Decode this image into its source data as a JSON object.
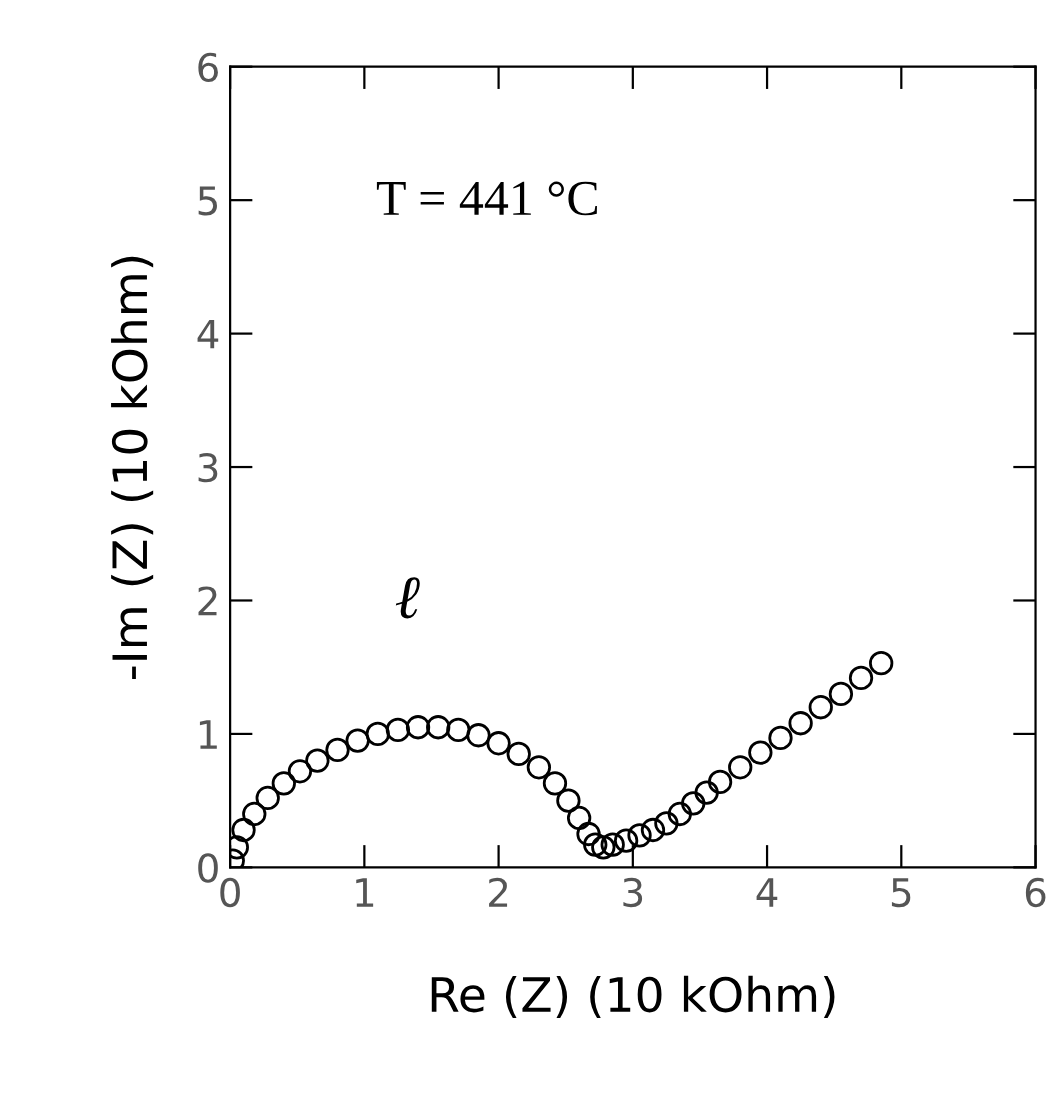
{
  "chart_data": {
    "type": "scatter",
    "xlabel": "Re (Z) (10 kOhm)",
    "ylabel": "-Im (Z) (10 kOhm)",
    "annotations": [
      "T = 441 °C",
      "ℓ"
    ],
    "x": [
      0.02,
      0.05,
      0.1,
      0.18,
      0.28,
      0.4,
      0.52,
      0.65,
      0.8,
      0.95,
      1.1,
      1.25,
      1.4,
      1.55,
      1.7,
      1.85,
      2.0,
      2.15,
      2.3,
      2.42,
      2.52,
      2.6,
      2.67,
      2.72,
      2.78,
      2.85,
      2.95,
      3.05,
      3.15,
      3.25,
      3.35,
      3.45,
      3.55,
      3.65,
      3.8,
      3.95,
      4.1,
      4.25,
      4.4,
      4.55,
      4.7,
      4.85
    ],
    "series": [
      {
        "color": "#000000",
        "values": [
          0.05,
          0.15,
          0.28,
          0.4,
          0.52,
          0.63,
          0.72,
          0.8,
          0.88,
          0.95,
          1.0,
          1.03,
          1.05,
          1.05,
          1.03,
          0.99,
          0.93,
          0.85,
          0.75,
          0.63,
          0.5,
          0.37,
          0.25,
          0.17,
          0.15,
          0.17,
          0.2,
          0.24,
          0.28,
          0.33,
          0.4,
          0.48,
          0.56,
          0.64,
          0.75,
          0.86,
          0.97,
          1.08,
          1.2,
          1.3,
          1.42,
          1.53
        ]
      }
    ],
    "marker": "circle",
    "xlim": [
      0,
      6
    ],
    "ylim": [
      0,
      6
    ],
    "xticks": [
      0,
      1,
      2,
      3,
      4,
      5,
      6
    ],
    "yticks": [
      0,
      1,
      2,
      3,
      4,
      5,
      6
    ],
    "grid": false,
    "legend": false
  }
}
